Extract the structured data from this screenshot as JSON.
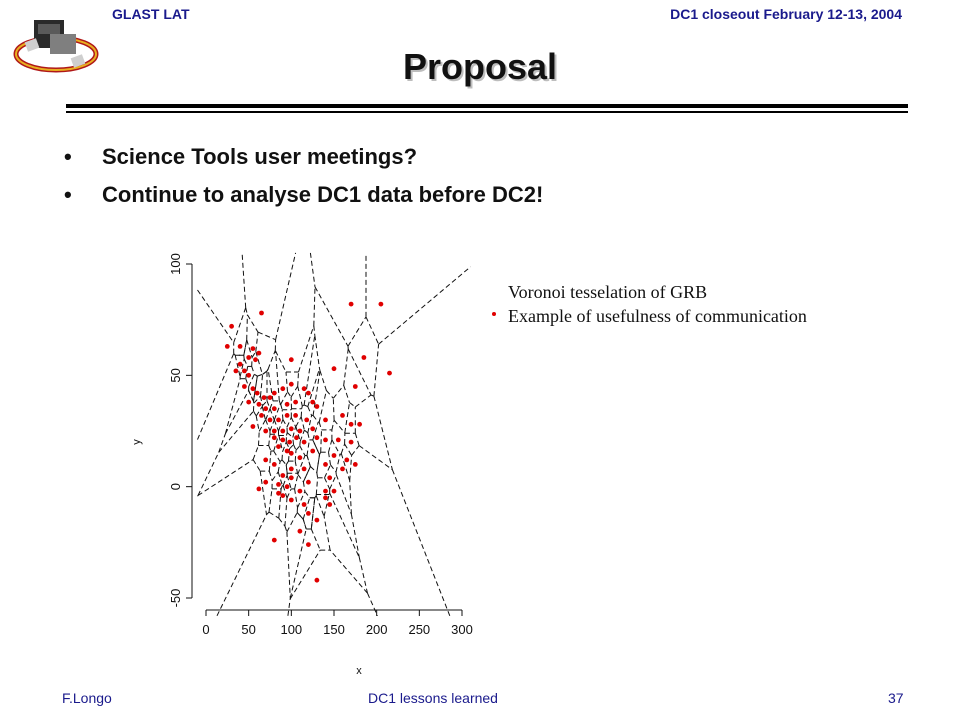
{
  "header": {
    "left": "GLAST LAT",
    "right": "DC1 closeout February 12-13, 2004"
  },
  "title": "Proposal",
  "bullets": [
    "Science Tools user meetings?",
    "Continue to analyse DC1 data before DC2!"
  ],
  "annotation": {
    "line1": "Voronoi tesselation of GRB",
    "line2": "Example of usefulness of communication"
  },
  "footer": {
    "left": "F.Longo",
    "center": "DC1 lessons learned",
    "page": "37"
  },
  "colors": {
    "header_text": "#1a1a8c",
    "points": "#e00000"
  },
  "chart_data": {
    "type": "scatter",
    "xlabel": "x",
    "ylabel": "y",
    "xlim": [
      0,
      300
    ],
    "ylim": [
      -50,
      100
    ],
    "xticks": [
      "0",
      "50",
      "100",
      "150",
      "200",
      "250",
      "300"
    ],
    "yticks": [
      "-50",
      "0",
      "50",
      "100"
    ],
    "overlay": "voronoi tessellation (dashed)",
    "points": [
      [
        30,
        72
      ],
      [
        65,
        78
      ],
      [
        170,
        82
      ],
      [
        205,
        82
      ],
      [
        25,
        63
      ],
      [
        40,
        63
      ],
      [
        55,
        62
      ],
      [
        62,
        60
      ],
      [
        50,
        58
      ],
      [
        58,
        57
      ],
      [
        100,
        57
      ],
      [
        185,
        58
      ],
      [
        150,
        53
      ],
      [
        40,
        55
      ],
      [
        45,
        52
      ],
      [
        50,
        50
      ],
      [
        35,
        52
      ],
      [
        215,
        51
      ],
      [
        45,
        45
      ],
      [
        55,
        44
      ],
      [
        60,
        42
      ],
      [
        68,
        40
      ],
      [
        75,
        40
      ],
      [
        80,
        42
      ],
      [
        90,
        44
      ],
      [
        100,
        46
      ],
      [
        115,
        44
      ],
      [
        120,
        42
      ],
      [
        175,
        45
      ],
      [
        50,
        38
      ],
      [
        62,
        37
      ],
      [
        70,
        35
      ],
      [
        80,
        35
      ],
      [
        95,
        37
      ],
      [
        105,
        38
      ],
      [
        125,
        38
      ],
      [
        130,
        36
      ],
      [
        65,
        32
      ],
      [
        75,
        30
      ],
      [
        85,
        30
      ],
      [
        95,
        32
      ],
      [
        105,
        32
      ],
      [
        118,
        30
      ],
      [
        140,
        30
      ],
      [
        160,
        32
      ],
      [
        170,
        28
      ],
      [
        180,
        28
      ],
      [
        55,
        27
      ],
      [
        70,
        25
      ],
      [
        80,
        25
      ],
      [
        90,
        25
      ],
      [
        100,
        26
      ],
      [
        110,
        25
      ],
      [
        125,
        26
      ],
      [
        80,
        22
      ],
      [
        90,
        21
      ],
      [
        98,
        20
      ],
      [
        106,
        22
      ],
      [
        115,
        20
      ],
      [
        130,
        22
      ],
      [
        140,
        21
      ],
      [
        155,
        21
      ],
      [
        170,
        20
      ],
      [
        85,
        18
      ],
      [
        95,
        16
      ],
      [
        100,
        15
      ],
      [
        110,
        13
      ],
      [
        125,
        16
      ],
      [
        150,
        14
      ],
      [
        165,
        12
      ],
      [
        70,
        12
      ],
      [
        80,
        10
      ],
      [
        100,
        8
      ],
      [
        115,
        8
      ],
      [
        140,
        10
      ],
      [
        160,
        8
      ],
      [
        175,
        10
      ],
      [
        90,
        5
      ],
      [
        100,
        4
      ],
      [
        120,
        2
      ],
      [
        145,
        4
      ],
      [
        70,
        2
      ],
      [
        85,
        1
      ],
      [
        95,
        0
      ],
      [
        110,
        -2
      ],
      [
        150,
        -2
      ],
      [
        62,
        -1
      ],
      [
        90,
        -4
      ],
      [
        100,
        -6
      ],
      [
        115,
        -8
      ],
      [
        140,
        -5
      ],
      [
        85,
        -3
      ],
      [
        120,
        -12
      ],
      [
        130,
        -15
      ],
      [
        110,
        -20
      ],
      [
        80,
        -24
      ],
      [
        120,
        -26
      ],
      [
        130,
        -42
      ],
      [
        145,
        -8
      ],
      [
        140,
        -2
      ]
    ]
  }
}
